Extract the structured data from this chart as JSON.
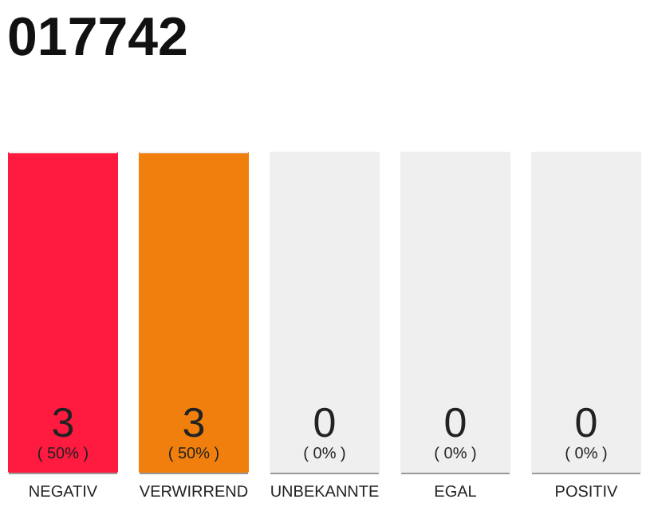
{
  "chart_data": {
    "type": "bar",
    "title": "017742",
    "stacked": true,
    "ylim": [
      0,
      3
    ],
    "categories": [
      "NEGATIV",
      "VERWIRREND",
      "UNBEKANNTE",
      "EGAL",
      "POSITIV"
    ],
    "series": [
      {
        "colors": [
          "#ff1a40",
          "#f07f0d",
          "#999999",
          "#999999",
          "#999999"
        ],
        "values": [
          3,
          3,
          0,
          0,
          0
        ],
        "value_labels": [
          "3\n( 50% )",
          "3\n( 50% )",
          "0\n( 0% )",
          "0\n( 0% )",
          "0\n( 0% )"
        ]
      },
      {
        "color": "#efefef",
        "values": [
          0,
          0,
          3,
          3,
          3
        ]
      }
    ],
    "grid": false
  }
}
